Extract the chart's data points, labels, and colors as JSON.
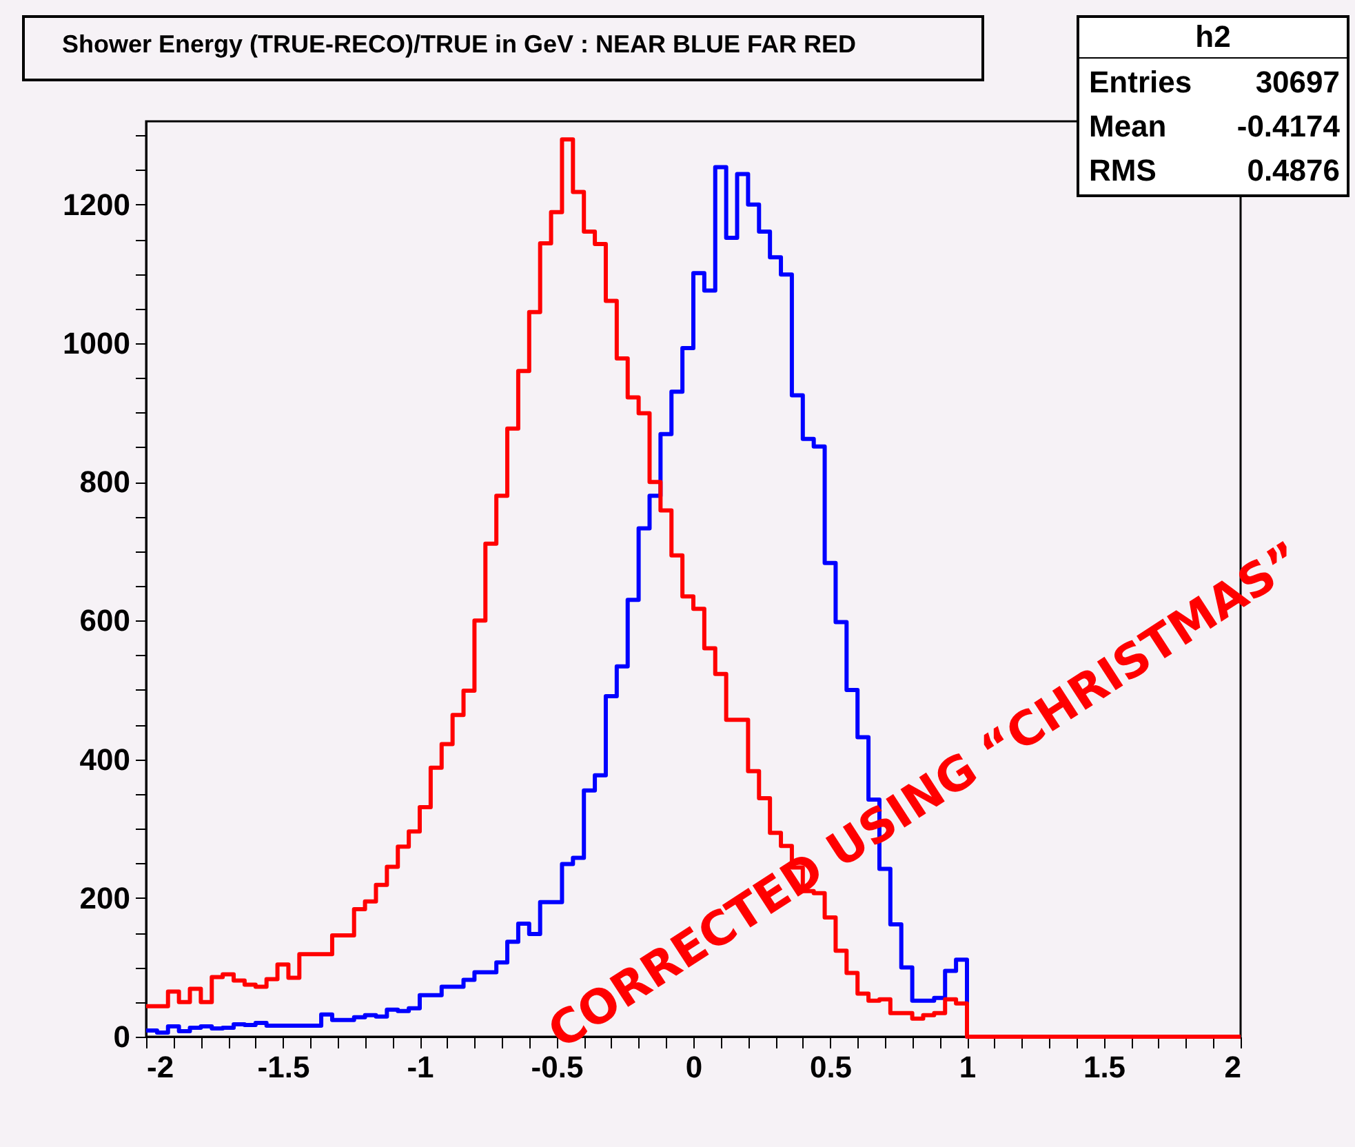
{
  "chart_data": {
    "type": "histogram",
    "title": "Shower Energy (TRUE-RECO)/TRUE in GeV : NEAR BLUE FAR RED",
    "bins": [
      -2,
      -1.96,
      -1.92,
      -1.88,
      -1.84,
      -1.8,
      -1.76,
      -1.72,
      -1.68,
      -1.64,
      -1.6,
      -1.56,
      -1.52,
      -1.48,
      -1.44,
      -1.4,
      -1.36,
      -1.32,
      -1.28,
      -1.24,
      -1.2,
      -1.16,
      -1.12,
      -1.08,
      -1.04,
      -1,
      -0.96,
      -0.92,
      -0.88,
      -0.84,
      -0.8,
      -0.76,
      -0.72,
      -0.68,
      -0.64,
      -0.6,
      -0.56,
      -0.52,
      -0.48,
      -0.44,
      -0.4,
      -0.36,
      -0.32,
      -0.28,
      -0.24,
      -0.2,
      -0.16,
      -0.12,
      -0.08,
      -0.04,
      0,
      0.04,
      0.08,
      0.12,
      0.16,
      0.2,
      0.24,
      0.28,
      0.32,
      0.36,
      0.4,
      0.44,
      0.48,
      0.52,
      0.56,
      0.6,
      0.64,
      0.68,
      0.72,
      0.76,
      0.8,
      0.84,
      0.88,
      0.92,
      0.96,
      1,
      1.04,
      1.08,
      1.12,
      1.16,
      1.2,
      1.24,
      1.28,
      1.32,
      1.36,
      1.4,
      1.44,
      1.48,
      1.52,
      1.56,
      1.6,
      1.64,
      1.68,
      1.72,
      1.76,
      1.8,
      1.84,
      1.88,
      1.92,
      1.96,
      2
    ],
    "series": [
      {
        "color": "#0000ff",
        "values": [
          9,
          6,
          15,
          8,
          13,
          15,
          12,
          13,
          18,
          17,
          20,
          16,
          16,
          16,
          16,
          16,
          32,
          24,
          24,
          28,
          31,
          29,
          39,
          37,
          41,
          60,
          60,
          72,
          72,
          82,
          93,
          93,
          107,
          137,
          163,
          148,
          194,
          194,
          249,
          258,
          355,
          377,
          491,
          534,
          630,
          733,
          780,
          869,
          930,
          993,
          1101,
          1076,
          1254,
          1152,
          1244,
          1200,
          1161,
          1124,
          1099,
          925,
          862,
          851,
          683,
          598,
          500,
          432,
          342,
          242,
          162,
          100,
          52,
          52,
          56,
          95,
          111,
          0,
          0,
          0,
          0,
          0,
          0,
          0,
          0,
          0,
          0,
          0,
          0,
          0,
          0,
          0,
          0,
          0,
          0,
          0,
          0,
          0,
          0,
          0,
          0,
          0
        ]
      },
      {
        "color": "#ff0000",
        "values": [
          44,
          44,
          65,
          50,
          69,
          50,
          86,
          90,
          81,
          75,
          72,
          83,
          104,
          85,
          119,
          119,
          119,
          146,
          146,
          184,
          195,
          219,
          245,
          274,
          296,
          331,
          388,
          422,
          464,
          499,
          600,
          711,
          780,
          877,
          960,
          1045,
          1144,
          1189,
          1294,
          1218,
          1161,
          1143,
          1061,
          978,
          922,
          899,
          800,
          759,
          694,
          635,
          617,
          560,
          523,
          457,
          457,
          383,
          344,
          294,
          275,
          244,
          210,
          207,
          172,
          124,
          92,
          62,
          52,
          54,
          34,
          34,
          26,
          31,
          34,
          54,
          48,
          0,
          0,
          0,
          0,
          0,
          0,
          0,
          0,
          0,
          0,
          0,
          0,
          0,
          0,
          0,
          0,
          0,
          0,
          0,
          0,
          0,
          0,
          0,
          0,
          0
        ]
      }
    ],
    "xlim": [
      -2,
      2
    ],
    "xticks": [
      -2,
      {
        "value": -1.9,
        "label": null
      },
      {
        "value": -1.8,
        "label": null
      },
      {
        "value": -1.7,
        "label": null
      },
      {
        "value": -1.6,
        "label": null
      },
      -1.5,
      {
        "value": -1.4,
        "label": null
      },
      {
        "value": -1.3,
        "label": null
      },
      {
        "value": -1.2,
        "label": null
      },
      {
        "value": -1.1,
        "label": null
      },
      -1,
      {
        "value": -0.9,
        "label": null
      },
      {
        "value": -0.8,
        "label": null
      },
      {
        "value": -0.7,
        "label": null
      },
      {
        "value": -0.6,
        "label": null
      },
      -0.5,
      {
        "value": -0.4,
        "label": null
      },
      {
        "value": -0.3,
        "label": null
      },
      {
        "value": -0.2,
        "label": null
      },
      {
        "value": -0.1,
        "label": null
      },
      0,
      {
        "value": 0.1,
        "label": null
      },
      {
        "value": 0.2,
        "label": null
      },
      {
        "value": 0.3,
        "label": null
      },
      {
        "value": 0.4,
        "label": null
      },
      0.5,
      {
        "value": 0.6,
        "label": null
      },
      {
        "value": 0.7,
        "label": null
      },
      {
        "value": 0.8,
        "label": null
      },
      {
        "value": 0.9,
        "label": null
      },
      1,
      {
        "value": 1.1,
        "label": null
      },
      {
        "value": 1.2,
        "label": null
      },
      {
        "value": 1.3,
        "label": null
      },
      {
        "value": 1.4,
        "label": null
      },
      1.5,
      {
        "value": 1.6,
        "label": null
      },
      {
        "value": 1.7,
        "label": null
      },
      {
        "value": 1.8,
        "label": null
      },
      {
        "value": 1.9,
        "label": null
      },
      2
    ],
    "ylim": [
      0,
      1320
    ],
    "yticks": [
      0,
      {
        "value": 50,
        "label": null
      },
      {
        "value": 100,
        "label": null
      },
      {
        "value": 150,
        "label": null
      },
      200,
      {
        "value": 250,
        "label": null
      },
      {
        "value": 300,
        "label": null
      },
      {
        "value": 350,
        "label": null
      },
      400,
      {
        "value": 450,
        "label": null
      },
      {
        "value": 500,
        "label": null
      },
      {
        "value": 550,
        "label": null
      },
      600,
      {
        "value": 650,
        "label": null
      },
      {
        "value": 700,
        "label": null
      },
      {
        "value": 750,
        "label": null
      },
      800,
      {
        "value": 850,
        "label": null
      },
      {
        "value": 900,
        "label": null
      },
      {
        "value": 950,
        "label": null
      },
      1000,
      {
        "value": 1050,
        "label": null
      },
      {
        "value": 1100,
        "label": null
      },
      {
        "value": 1150,
        "label": null
      },
      1200,
      {
        "value": 1250,
        "label": null
      },
      {
        "value": 1300,
        "label": null
      }
    ],
    "annotations": [
      "h2",
      "Entries",
      "30697",
      "Mean",
      "-0.4174",
      "RMS",
      "0.4876",
      "CORRECTED USING “CHRISTMAS”"
    ],
    "grid": false
  }
}
